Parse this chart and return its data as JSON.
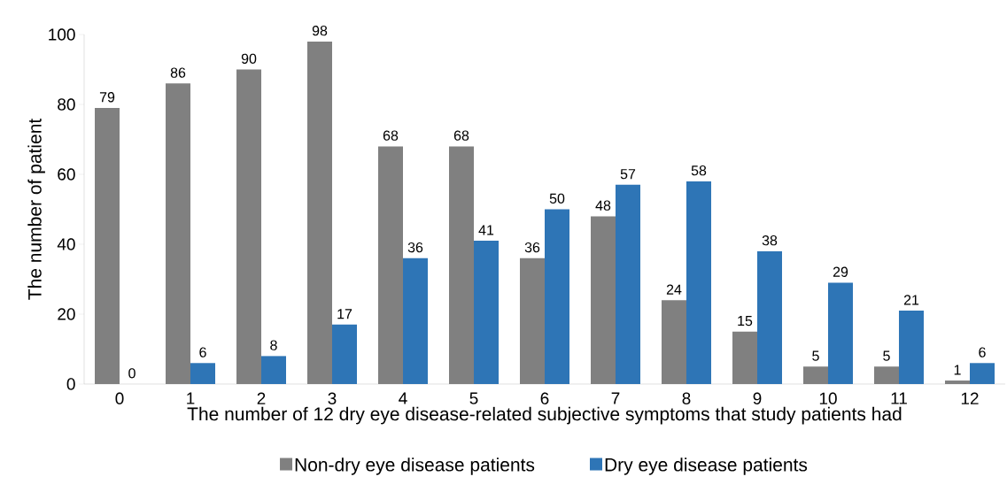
{
  "chart_data": {
    "type": "bar",
    "xlabel": "The number of 12 dry eye disease-related subjective symptoms that study patients had",
    "ylabel": "The number of patient",
    "categories": [
      "0",
      "1",
      "2",
      "3",
      "4",
      "5",
      "6",
      "7",
      "8",
      "9",
      "10",
      "11",
      "12"
    ],
    "series": [
      {
        "name": "Non-dry eye disease patients",
        "color": "#808080",
        "values": [
          79,
          86,
          90,
          98,
          68,
          68,
          36,
          48,
          24,
          15,
          5,
          5,
          1
        ]
      },
      {
        "name": "Dry eye disease patients",
        "color": "#2e75b6",
        "values": [
          0,
          6,
          8,
          17,
          36,
          41,
          50,
          57,
          58,
          38,
          29,
          21,
          6
        ]
      }
    ],
    "ylim": [
      0,
      100
    ],
    "yticks": [
      0,
      20,
      40,
      60,
      80,
      100
    ],
    "grid": false,
    "legend": "bottom",
    "data_labels": true
  }
}
